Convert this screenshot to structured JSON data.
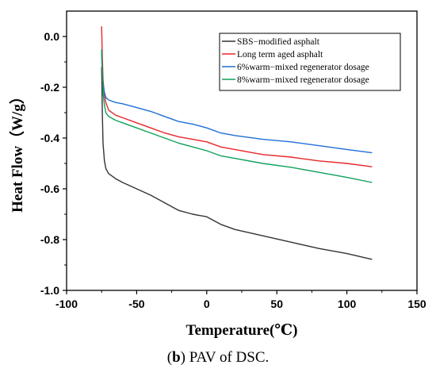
{
  "chart_data": {
    "type": "line",
    "xlabel": "Temperature(℃)",
    "ylabel": "Heat Flow（W/g）",
    "xlim": [
      -100,
      150
    ],
    "ylim": [
      -1.0,
      0.1
    ],
    "x_ticks": [
      -100,
      -50,
      0,
      50,
      100,
      150
    ],
    "y_ticks": [
      0.0,
      -0.2,
      -0.4,
      -0.6,
      -0.8,
      -1.0
    ],
    "x_tick_labels": [
      "-100",
      "-50",
      "0",
      "50",
      "100",
      "150"
    ],
    "y_tick_labels": [
      "0.0",
      "-0.2",
      "-0.4",
      "-0.6",
      "-0.8",
      "-1.0"
    ],
    "grid": false,
    "legend_position": "top-right",
    "series": [
      {
        "name": "SBS−modified asphalt",
        "color": "#333333",
        "points": [
          [
            -75,
            -0.12
          ],
          [
            -74.5,
            -0.3
          ],
          [
            -74,
            -0.42
          ],
          [
            -73,
            -0.49
          ],
          [
            -72,
            -0.52
          ],
          [
            -70,
            -0.54
          ],
          [
            -65,
            -0.56
          ],
          [
            -60,
            -0.575
          ],
          [
            -50,
            -0.6
          ],
          [
            -40,
            -0.625
          ],
          [
            -30,
            -0.655
          ],
          [
            -20,
            -0.685
          ],
          [
            -10,
            -0.7
          ],
          [
            0,
            -0.71
          ],
          [
            10,
            -0.74
          ],
          [
            20,
            -0.76
          ],
          [
            40,
            -0.785
          ],
          [
            60,
            -0.81
          ],
          [
            80,
            -0.835
          ],
          [
            100,
            -0.855
          ],
          [
            118,
            -0.878
          ]
        ]
      },
      {
        "name": "Long term aged asphalt",
        "color": "#e8262a",
        "points": [
          [
            -75,
            0.04
          ],
          [
            -74.5,
            -0.08
          ],
          [
            -74,
            -0.17
          ],
          [
            -73,
            -0.23
          ],
          [
            -72,
            -0.26
          ],
          [
            -70,
            -0.29
          ],
          [
            -65,
            -0.31
          ],
          [
            -60,
            -0.32
          ],
          [
            -50,
            -0.34
          ],
          [
            -40,
            -0.36
          ],
          [
            -30,
            -0.38
          ],
          [
            -20,
            -0.395
          ],
          [
            -10,
            -0.405
          ],
          [
            0,
            -0.415
          ],
          [
            10,
            -0.435
          ],
          [
            20,
            -0.445
          ],
          [
            40,
            -0.465
          ],
          [
            60,
            -0.475
          ],
          [
            80,
            -0.49
          ],
          [
            100,
            -0.5
          ],
          [
            118,
            -0.513
          ]
        ]
      },
      {
        "name": "6%warm−mixed regenerator dosage",
        "color": "#1f6fd6",
        "points": [
          [
            -75,
            -0.06
          ],
          [
            -74.5,
            -0.14
          ],
          [
            -74,
            -0.19
          ],
          [
            -73,
            -0.22
          ],
          [
            -72,
            -0.24
          ],
          [
            -70,
            -0.25
          ],
          [
            -65,
            -0.26
          ],
          [
            -60,
            -0.265
          ],
          [
            -50,
            -0.28
          ],
          [
            -40,
            -0.295
          ],
          [
            -30,
            -0.315
          ],
          [
            -20,
            -0.335
          ],
          [
            -10,
            -0.345
          ],
          [
            0,
            -0.36
          ],
          [
            10,
            -0.38
          ],
          [
            20,
            -0.39
          ],
          [
            40,
            -0.405
          ],
          [
            60,
            -0.415
          ],
          [
            80,
            -0.43
          ],
          [
            100,
            -0.445
          ],
          [
            118,
            -0.458
          ]
        ]
      },
      {
        "name": "8%warm−mixed regenerator dosage",
        "color": "#0fa05a",
        "points": [
          [
            -75,
            -0.05
          ],
          [
            -74.5,
            -0.15
          ],
          [
            -74,
            -0.22
          ],
          [
            -73,
            -0.27
          ],
          [
            -72,
            -0.3
          ],
          [
            -70,
            -0.315
          ],
          [
            -65,
            -0.33
          ],
          [
            -60,
            -0.34
          ],
          [
            -50,
            -0.36
          ],
          [
            -40,
            -0.38
          ],
          [
            -30,
            -0.4
          ],
          [
            -20,
            -0.42
          ],
          [
            -10,
            -0.435
          ],
          [
            0,
            -0.45
          ],
          [
            10,
            -0.47
          ],
          [
            20,
            -0.48
          ],
          [
            40,
            -0.5
          ],
          [
            60,
            -0.515
          ],
          [
            80,
            -0.535
          ],
          [
            100,
            -0.555
          ],
          [
            118,
            -0.575
          ]
        ]
      }
    ]
  },
  "caption": {
    "label": "b",
    "text": " PAV of DSC."
  }
}
